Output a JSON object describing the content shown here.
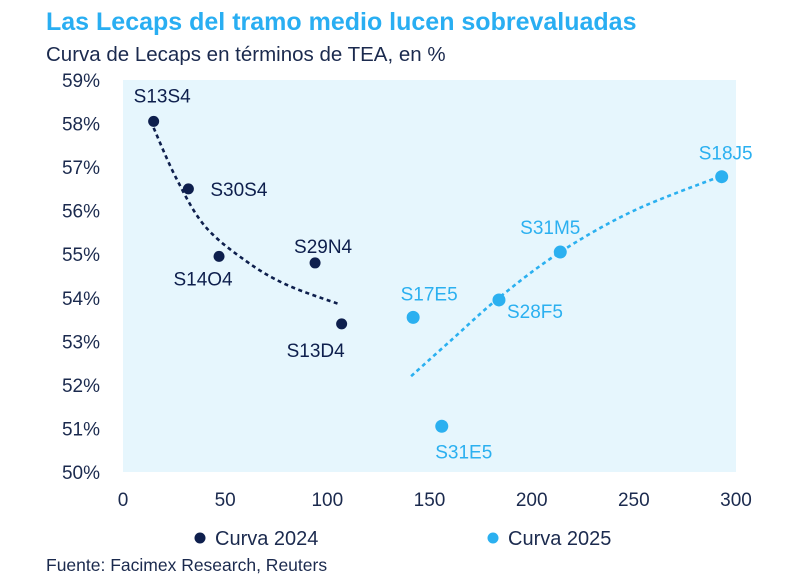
{
  "title": "Las Lecaps del tramo medio lucen sobrevaluadas",
  "subtitle": "Curva de Lecaps en términos de TEA, en %",
  "source": "Fuente: Facimex Research, Reuters",
  "colors": {
    "series_2024": "#0e1f4d",
    "series_2025": "#2bb0f0",
    "plot_bg": "#e6f6fd",
    "title": "#29aef2"
  },
  "chart_data": {
    "type": "scatter",
    "title": "Las Lecaps del tramo medio lucen sobrevaluadas",
    "subtitle": "Curva de Lecaps en términos de TEA, en %",
    "xlabel": "",
    "ylabel": "",
    "xlim": [
      0,
      300
    ],
    "ylim": [
      50,
      59
    ],
    "x_ticks": [
      0,
      50,
      100,
      150,
      200,
      250,
      300
    ],
    "y_ticks": [
      50,
      51,
      52,
      53,
      54,
      55,
      56,
      57,
      58,
      59
    ],
    "y_tick_suffix": "%",
    "legend_position": "bottom",
    "series": [
      {
        "name": "Curva 2024",
        "points": [
          {
            "label": "S13S4",
            "x": 15,
            "y": 58.05
          },
          {
            "label": "S30S4",
            "x": 32,
            "y": 56.5
          },
          {
            "label": "S14O4",
            "x": 47,
            "y": 54.95
          },
          {
            "label": "S29N4",
            "x": 94,
            "y": 54.8
          },
          {
            "label": "S13D4",
            "x": 107,
            "y": 53.4
          }
        ],
        "trend": [
          [
            15,
            57.9
          ],
          [
            26,
            56.75
          ],
          [
            40,
            55.65
          ],
          [
            60,
            54.85
          ],
          [
            80,
            54.3
          ],
          [
            106,
            53.85
          ]
        ]
      },
      {
        "name": "Curva 2025",
        "points": [
          {
            "label": "S17E5",
            "x": 142,
            "y": 53.55
          },
          {
            "label": "S31E5",
            "x": 156,
            "y": 51.05
          },
          {
            "label": "S28F5",
            "x": 184,
            "y": 53.95
          },
          {
            "label": "S31M5",
            "x": 214,
            "y": 55.05
          },
          {
            "label": "S18J5",
            "x": 293,
            "y": 56.78
          }
        ],
        "trend": [
          [
            141,
            52.2
          ],
          [
            160,
            53.0
          ],
          [
            184,
            54.0
          ],
          [
            214,
            55.05
          ],
          [
            250,
            56.0
          ],
          [
            293,
            56.8
          ]
        ]
      }
    ]
  }
}
